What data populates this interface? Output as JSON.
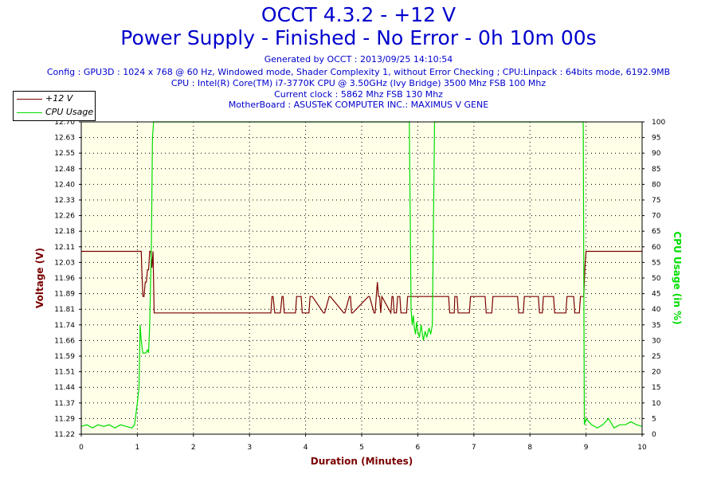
{
  "header": {
    "title": "OCCT 4.3.2 - +12 V",
    "subtitle": "Power Supply - Finished - No Error - 0h 10m 00s",
    "info_lines": [
      "Generated by OCCT : 2013/09/25 14:10:54",
      "Config : GPU3D : 1024 x 768 @ 60 Hz, Windowed mode, Shader Complexity 1, without Error Checking ; CPU:Linpack : 64bits mode, 6192.9MB",
      "CPU : Intel(R) Core(TM) i7-3770K CPU @ 3.50GHz (Ivy Bridge) 3500 Mhz FSB 100 Mhz",
      "Current clock : 5862 Mhz FSB 130 Mhz",
      "MotherBoard : ASUSTeK COMPUTER INC.: MAXIMUS V GENE"
    ]
  },
  "legend": {
    "voltage_label": "+12 V",
    "cpu_label": "CPU Usage"
  },
  "colors": {
    "voltage": "#7a0000",
    "cpu": "#00dd00",
    "title": "#0000cc",
    "plot_bg": "#ffffe8",
    "grid": "#000000"
  },
  "chart_data": {
    "type": "line",
    "xlabel": "Duration (Minutes)",
    "ylabel": "Voltage (V)",
    "y2label": "CPU Usage (in %)",
    "xlim": [
      0,
      10
    ],
    "ylim": [
      11.22,
      12.74
    ],
    "y2lim": [
      0,
      100
    ],
    "x_ticks": [
      "0",
      "1",
      "2",
      "3",
      "4",
      "5",
      "6",
      "7",
      "8",
      "9",
      "10"
    ],
    "y_ticks": [
      "11.22",
      "11.29",
      "11.37",
      "11.44",
      "11.51",
      "11.59",
      "11.66",
      "11.74",
      "11.81",
      "11.89",
      "11.96",
      "12.03",
      "12.11",
      "12.18",
      "12.26",
      "12.33",
      "12.40",
      "12.48",
      "12.55",
      "12.63",
      "12.70"
    ],
    "y2_ticks": [
      "0",
      "5",
      "10",
      "15",
      "20",
      "25",
      "30",
      "35",
      "40",
      "45",
      "50",
      "55",
      "60",
      "65",
      "70",
      "75",
      "80",
      "85",
      "90",
      "95",
      "100"
    ],
    "grid": true,
    "legend_position": "top-left",
    "series": [
      {
        "name": "+12 V",
        "axis": "left",
        "x": [
          0,
          1.07,
          1.08,
          1.1,
          1.12,
          1.14,
          1.16,
          1.18,
          1.2,
          1.22,
          1.24,
          1.26,
          1.28,
          1.3,
          1.32,
          1.34,
          3.18,
          3.22,
          3.26,
          3.38,
          3.4,
          3.42,
          3.45,
          3.55,
          3.58,
          3.6,
          3.62,
          3.82,
          3.84,
          3.92,
          3.94,
          4.06,
          4.08,
          4.1,
          4.12,
          4.32,
          4.34,
          4.42,
          4.44,
          4.68,
          4.7,
          4.78,
          4.8,
          4.82,
          4.84,
          5.12,
          5.14,
          5.22,
          5.24,
          5.26,
          5.28,
          5.3,
          5.32,
          5.34,
          5.36,
          5.52,
          5.54,
          5.56,
          5.58,
          5.62,
          5.64,
          5.68,
          5.7,
          5.8,
          5.82,
          6.55,
          6.57,
          6.63,
          6.65,
          6.66,
          6.7,
          6.72,
          6.92,
          6.94,
          7.2,
          7.22,
          7.32,
          7.34,
          7.78,
          7.8,
          7.88,
          7.9,
          8.15,
          8.17,
          8.22,
          8.24,
          8.42,
          8.44,
          8.64,
          8.66,
          8.78,
          8.8,
          8.88,
          8.9,
          8.96,
          8.98,
          9.0,
          9.02,
          10
        ],
        "values": [
          12.11,
          12.11,
          12.02,
          11.89,
          11.89,
          11.96,
          11.96,
          12.02,
          12.02,
          12.11,
          12.11,
          12.03,
          12.11,
          11.81,
          11.81,
          11.81,
          11.81,
          11.81,
          11.81,
          11.81,
          11.89,
          11.89,
          11.81,
          11.81,
          11.89,
          11.89,
          11.81,
          11.81,
          11.89,
          11.89,
          11.81,
          11.81,
          11.89,
          11.89,
          11.89,
          11.81,
          11.81,
          11.89,
          11.89,
          11.81,
          11.81,
          11.89,
          11.89,
          11.81,
          11.81,
          11.89,
          11.89,
          11.81,
          11.81,
          11.89,
          11.96,
          11.89,
          11.89,
          11.81,
          11.89,
          11.81,
          11.89,
          11.89,
          11.81,
          11.81,
          11.89,
          11.89,
          11.81,
          11.81,
          11.89,
          11.89,
          11.81,
          11.81,
          11.81,
          11.89,
          11.89,
          11.81,
          11.81,
          11.89,
          11.89,
          11.81,
          11.81,
          11.89,
          11.89,
          11.81,
          11.81,
          11.89,
          11.89,
          11.81,
          11.81,
          11.89,
          11.89,
          11.81,
          11.81,
          11.89,
          11.89,
          11.81,
          11.81,
          11.89,
          11.89,
          12.03,
          12.11,
          12.11,
          12.11
        ]
      },
      {
        "name": "CPU Usage",
        "axis": "right",
        "x": [
          0,
          0.1,
          0.2,
          0.3,
          0.4,
          0.5,
          0.6,
          0.7,
          0.8,
          0.9,
          0.95,
          1.0,
          1.03,
          1.05,
          1.07,
          1.09,
          1.1,
          1.12,
          1.15,
          1.18,
          1.2,
          1.22,
          1.25,
          1.27,
          1.29,
          1.3,
          2.0,
          3.0,
          4.0,
          5.0,
          5.85,
          5.88,
          5.9,
          5.92,
          5.94,
          5.96,
          5.98,
          6.0,
          6.03,
          6.06,
          6.1,
          6.13,
          6.16,
          6.2,
          6.23,
          6.26,
          6.3,
          6.32,
          6.35,
          6.37,
          7.0,
          8.0,
          8.95,
          8.97,
          9.0,
          9.05,
          9.1,
          9.2,
          9.3,
          9.4,
          9.5,
          9.6,
          9.7,
          9.8,
          9.9,
          10.0
        ],
        "values": [
          2.5,
          3,
          2,
          3,
          2.5,
          3,
          2,
          3,
          2.5,
          2,
          3,
          10,
          15,
          35,
          30,
          27,
          26,
          26,
          26,
          27,
          26,
          35,
          60,
          95,
          100,
          100,
          100,
          100,
          100,
          100,
          100,
          40,
          35,
          38,
          34,
          32,
          36,
          33,
          31,
          35,
          30,
          33,
          31,
          34,
          32,
          35,
          100,
          100,
          100,
          100,
          100,
          100,
          100,
          3,
          5,
          4,
          3,
          2,
          3,
          5,
          2,
          3,
          3,
          4,
          3,
          2.5
        ]
      }
    ]
  }
}
